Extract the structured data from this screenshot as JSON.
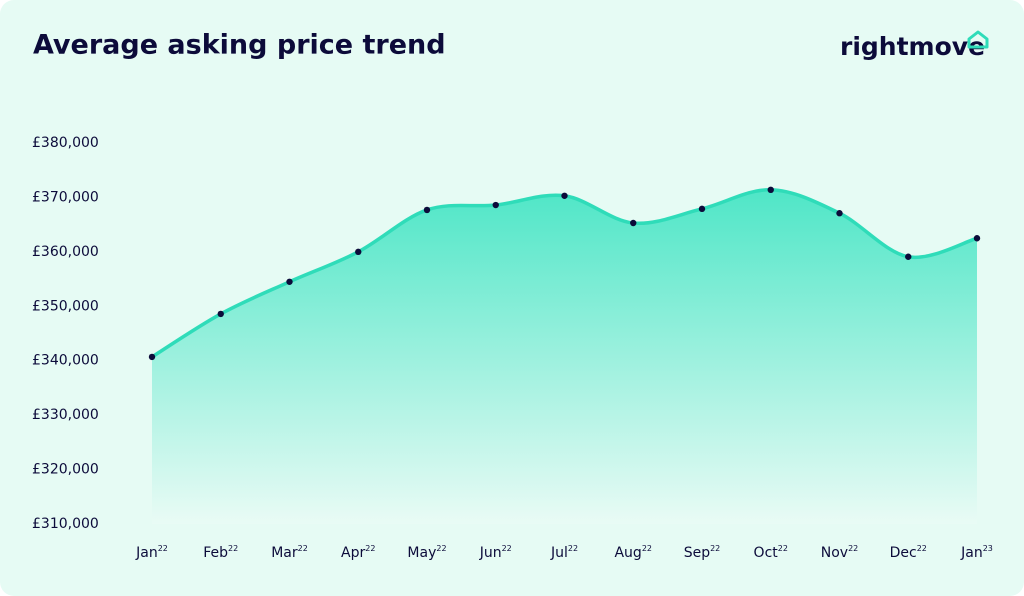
{
  "chart_data": {
    "type": "area",
    "title": "Average asking price trend",
    "brand": "rightmove",
    "categories": [
      "Jan",
      "Feb",
      "Mar",
      "Apr",
      "May",
      "Jun",
      "Jul",
      "Aug",
      "Sep",
      "Oct",
      "Nov",
      "Dec",
      "Jan"
    ],
    "category_superscripts": [
      "22",
      "22",
      "22",
      "22",
      "22",
      "22",
      "22",
      "22",
      "22",
      "22",
      "22",
      "22",
      "23"
    ],
    "values": [
      340700,
      348600,
      354500,
      360000,
      367700,
      368600,
      370300,
      365300,
      367900,
      371400,
      367100,
      359100,
      362500
    ],
    "color": "#2fdcb9",
    "marker_color": "#0c0b3a",
    "ylim": [
      310000,
      380000
    ],
    "yticks": [
      {
        "value": 310000,
        "label": "£310,000"
      },
      {
        "value": 320000,
        "label": "£320,000"
      },
      {
        "value": 330000,
        "label": "£330,000"
      },
      {
        "value": 340000,
        "label": "£340,000"
      },
      {
        "value": 350000,
        "label": "£350,000"
      },
      {
        "value": 360000,
        "label": "£360,000"
      },
      {
        "value": 370000,
        "label": "£370,000"
      },
      {
        "value": 380000,
        "label": "£380,000"
      }
    ],
    "grid": false
  }
}
